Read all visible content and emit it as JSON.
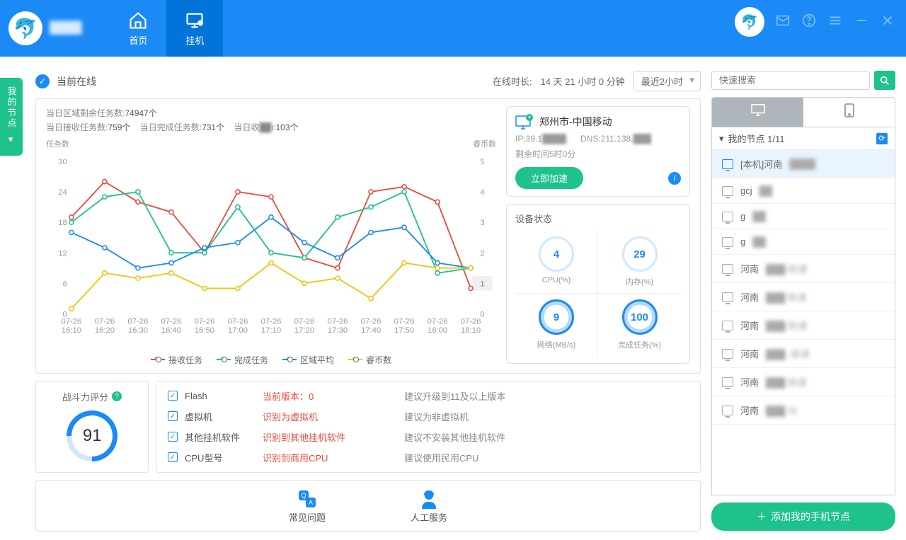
{
  "nav": {
    "home": "首页",
    "guaji": "挂机"
  },
  "sideTab": "我的节点",
  "topBar": {
    "online": "当前在线",
    "durationLabel": "在线时长:",
    "duration": "14 天 21 小时 0 分钟",
    "dropdown": "最近2小时"
  },
  "chart": {
    "stat1_label": "当日区域剩余任务数:",
    "stat1_val": "74947个",
    "stat2a_label": "当日接收任务数:",
    "stat2a_val": "759个",
    "stat2b_label": "当日完成任务数:",
    "stat2b_val": "731个",
    "stat2c_label": "当日收",
    "stat2c_mid": "i:",
    "stat2c_val": "103个",
    "leftAxisLabel": "任务数",
    "rightAxisLabel": "睿币数",
    "leftTicks": [
      0,
      6,
      12,
      18,
      24,
      30
    ],
    "rightTicks": [
      0,
      1,
      2,
      3,
      4,
      5
    ],
    "xLabels": [
      "07-26\n16:10",
      "07-26\n16:20",
      "07-26\n16:30",
      "07-26\n16:40",
      "07-26\n16:50",
      "07-26\n17:00",
      "07-26\n17:10",
      "07-26\n17:20",
      "07-26\n17:30",
      "07-26\n17:40",
      "07-26\n17:50",
      "07-26\n18:00",
      "07-26\n18:10"
    ],
    "series": {
      "recv": {
        "name": "接收任务",
        "color": "#e74c3c",
        "data": [
          19,
          26,
          22,
          20,
          12,
          24,
          23,
          11,
          9,
          24,
          25,
          22,
          5
        ]
      },
      "done": {
        "name": "完成任务",
        "color": "#1ec28d",
        "data": [
          18,
          23,
          24,
          12,
          12,
          21,
          12,
          11,
          19,
          21,
          24,
          8,
          9
        ]
      },
      "avg": {
        "name": "区域平均",
        "color": "#1b8af6",
        "data": [
          16,
          13,
          9,
          10,
          13,
          14,
          19,
          14,
          11,
          16,
          17,
          10,
          9
        ]
      },
      "coin": {
        "name": "睿币数",
        "color": "#f1c40f",
        "data": [
          1,
          8,
          7,
          8,
          5,
          5,
          10,
          6,
          7,
          3,
          10,
          9,
          9
        ]
      }
    }
  },
  "nodeInfo": {
    "location": "郑州市-中国移动",
    "ipLabel": "IP:",
    "ip": "39.1",
    "dnsLabel": "DNS:",
    "dns": "211.138.",
    "remain": "剩余时间5时0分",
    "accelBtn": "立即加速"
  },
  "device": {
    "title": "设备状态",
    "gauges": [
      {
        "val": "4",
        "label": "CPU(%)",
        "filled": false
      },
      {
        "val": "29",
        "label": "内存(%)",
        "filled": false
      },
      {
        "val": "9",
        "label": "网络(MB/s)",
        "filled": true
      },
      {
        "val": "100",
        "label": "完成任务(%)",
        "filled": true
      }
    ]
  },
  "score": {
    "title": "战斗力评分",
    "value": "91"
  },
  "checks": [
    {
      "name": "Flash",
      "status": "当前版本：0",
      "advice": "建议升级到11及以上版本"
    },
    {
      "name": "虚拟机",
      "status": "识别为虚拟机",
      "advice": "建议为非虚拟机"
    },
    {
      "name": "其他挂机软件",
      "status": "识别到其他挂机软件",
      "advice": "建议不安装其他挂机软件"
    },
    {
      "name": "CPU型号",
      "status": "识别到商用CPU",
      "advice": "建议使用民用CPU"
    }
  ],
  "help": {
    "faq": "常见问题",
    "service": "人工服务"
  },
  "search": {
    "placeholder": "快速搜索"
  },
  "nodeTree": {
    "header": "我的节点 1/11",
    "items": [
      {
        "label": "[本机]河南",
        "blur": "████",
        "selected": true
      },
      {
        "label": "gcj",
        "blur": "██"
      },
      {
        "label": "g",
        "blur": "██"
      },
      {
        "label": "g",
        "blur": "██"
      },
      {
        "label": "河南",
        "blur": "███-联通"
      },
      {
        "label": "河南",
        "blur": "███ 联通"
      },
      {
        "label": "河南",
        "blur": "███-联通"
      },
      {
        "label": "河南",
        "blur": "███ -联通"
      },
      {
        "label": "河南",
        "blur": "███ 联通"
      },
      {
        "label": "河南",
        "blur": "███ 动"
      }
    ]
  },
  "addBtn": "添加我的手机节点",
  "colors": {
    "primary": "#1b8af6",
    "green": "#1ec28d",
    "red": "#e74c3c"
  }
}
